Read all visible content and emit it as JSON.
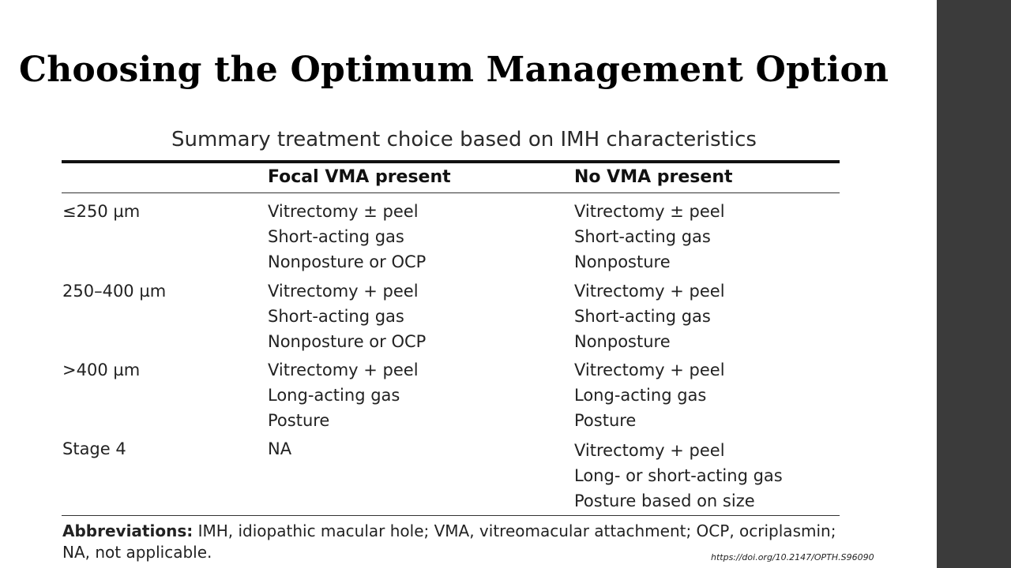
{
  "slide": {
    "title": "Choosing the Optimum Management Option",
    "doi": "https://doi.org/10.2147/OPTH.S96090"
  },
  "table": {
    "caption": "Summary treatment choice based on IMH characteristics",
    "columns": [
      "",
      "Focal VMA present",
      "No VMA present"
    ],
    "rows": [
      {
        "size": "≤250 µm",
        "focal_vma": [
          "Vitrectomy ± peel",
          "Short-acting gas",
          "Nonposture or OCP"
        ],
        "no_vma": [
          "Vitrectomy ± peel",
          "Short-acting gas",
          "Nonposture"
        ]
      },
      {
        "size": "250–400 µm",
        "focal_vma": [
          "Vitrectomy + peel",
          "Short-acting gas",
          "Nonposture or OCP"
        ],
        "no_vma": [
          "Vitrectomy + peel",
          "Short-acting gas",
          "Nonposture"
        ]
      },
      {
        "size": ">400 µm",
        "focal_vma": [
          "Vitrectomy + peel",
          "Long-acting gas",
          "Posture"
        ],
        "no_vma": [
          "Vitrectomy + peel",
          "Long-acting gas",
          "Posture"
        ]
      },
      {
        "size": "Stage 4",
        "focal_vma": [
          "NA"
        ],
        "no_vma": [
          "Vitrectomy + peel",
          "Long- or short-acting gas",
          "Posture based on size"
        ]
      }
    ],
    "abbreviations_label": "Abbreviations:",
    "abbreviations_text": "IMH, idiopathic macular hole; VMA, vitreomacular attachment; OCP, ocriplasmin; NA, not applicable."
  }
}
